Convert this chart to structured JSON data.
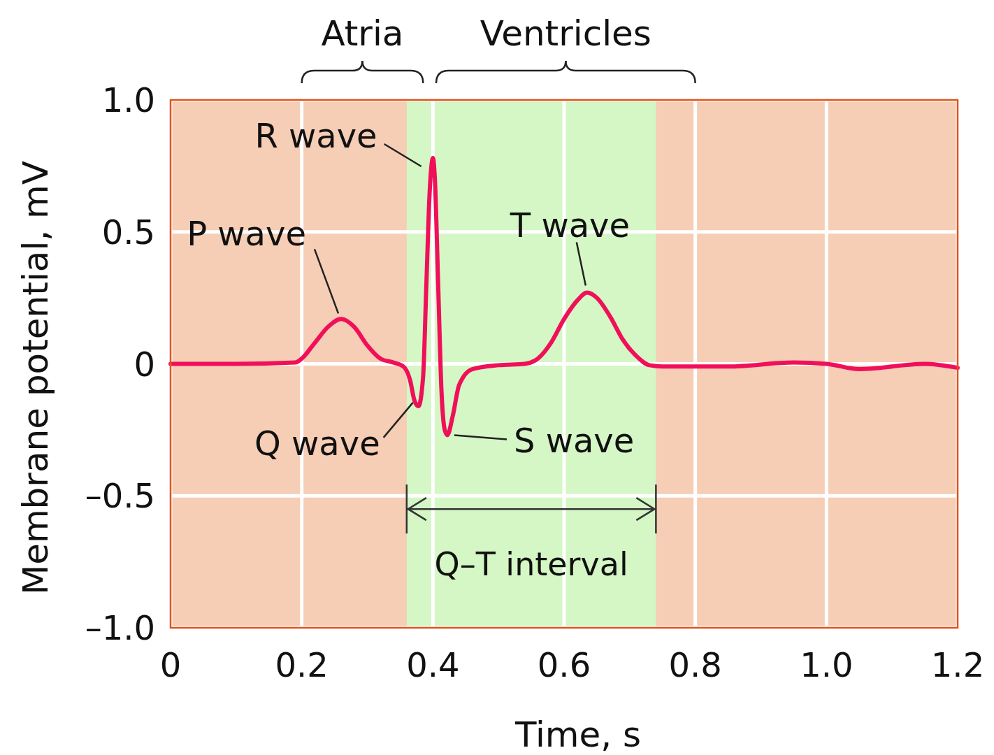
{
  "chart_data": {
    "type": "line",
    "xlabel": "Time, s",
    "ylabel": "Membrane potential, mV",
    "xlim": [
      0,
      1.2
    ],
    "xticks": [
      0,
      0.2,
      0.4,
      0.6,
      0.8,
      {
        "value": 1,
        "label": "1.0"
      },
      1.2
    ],
    "ylim": [
      -1,
      1
    ],
    "yticks": [
      {
        "value": 1,
        "label": "1.0"
      },
      {
        "value": 0.5,
        "label": "0.5"
      },
      {
        "value": 0,
        "label": "0"
      },
      {
        "value": -0.5,
        "label": "–0.5"
      },
      {
        "value": -1,
        "label": "–1.0"
      }
    ],
    "grid": true,
    "series": [
      {
        "color": "#f0105a",
        "x": [
          0,
          0.1,
          0.19,
          0.2,
          0.22,
          0.24,
          0.26,
          0.28,
          0.3,
          0.32,
          0.34,
          0.355,
          0.365,
          0.372,
          0.378,
          0.385,
          0.39,
          0.395,
          0.4,
          0.403,
          0.408,
          0.413,
          0.418,
          0.422,
          0.43,
          0.44,
          0.46,
          0.5,
          0.54,
          0.56,
          0.58,
          0.6,
          0.62,
          0.635,
          0.65,
          0.67,
          0.69,
          0.71,
          0.73,
          0.75,
          0.85,
          0.95,
          1.0,
          1.05,
          1.15,
          1.2
        ],
        "values": [
          0,
          0,
          0.005,
          0.02,
          0.08,
          0.14,
          0.17,
          0.14,
          0.07,
          0.02,
          0.005,
          -0.01,
          -0.06,
          -0.14,
          -0.16,
          -0.05,
          0.3,
          0.65,
          0.78,
          0.7,
          0.3,
          -0.1,
          -0.25,
          -0.27,
          -0.2,
          -0.08,
          -0.02,
          -0.005,
          0,
          0.02,
          0.08,
          0.17,
          0.24,
          0.27,
          0.25,
          0.18,
          0.09,
          0.03,
          -0.005,
          -0.01,
          -0.01,
          0.005,
          0,
          -0.02,
          0,
          -0.015
        ]
      }
    ],
    "bands": [
      {
        "axis": "x",
        "from": 0.36,
        "to": 0.74,
        "label": "Q–T interval",
        "color": "#d4f7c5"
      }
    ],
    "annotations": [
      {
        "text": "R wave",
        "x": 0.395,
        "y": 0.78
      },
      {
        "text": "P wave",
        "x": 0.26,
        "y": 0.17
      },
      {
        "text": "T wave",
        "x": 0.635,
        "y": 0.27
      },
      {
        "text": "Q wave",
        "x": 0.378,
        "y": -0.16
      },
      {
        "text": "S wave",
        "x": 0.422,
        "y": -0.27
      },
      "Atria",
      "Ventricles"
    ]
  }
}
